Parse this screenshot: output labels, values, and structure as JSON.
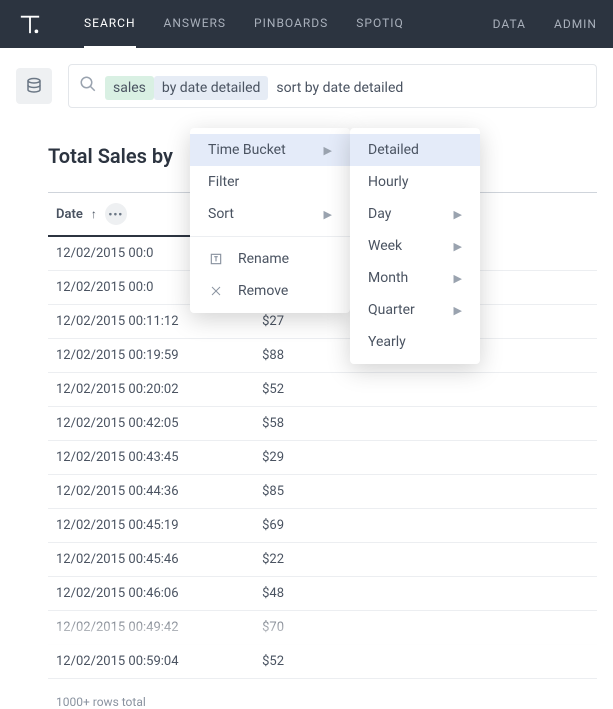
{
  "colors": {
    "navbar_bg": "#2c3440",
    "nav_inactive": "#a9b0bb",
    "nav_active": "#ffffff",
    "token_green_bg": "#d9f0e3",
    "token_blue_bg": "#e6ecf5",
    "menu_highlight_bg": "#e4ebf9",
    "border": "#eceef1",
    "text": "#4a5361"
  },
  "nav": {
    "items": [
      "SEARCH",
      "ANSWERS",
      "PINBOARDS",
      "SPOTIQ"
    ],
    "right": [
      "DATA",
      "ADMIN"
    ],
    "active_index": 0
  },
  "search": {
    "tokens": [
      {
        "text": "sales",
        "style": "green"
      },
      {
        "text": "by date detailed",
        "style": "blue"
      },
      {
        "text": "sort by date detailed",
        "style": "plain"
      }
    ]
  },
  "page": {
    "title": "Total Sales by"
  },
  "table": {
    "column_header": "Date",
    "sort_dir": "asc",
    "rows": [
      {
        "date": "12/02/2015 00:0",
        "value": ""
      },
      {
        "date": "12/02/2015 00:0",
        "value": ""
      },
      {
        "date": "12/02/2015 00:11:12",
        "value": "$27"
      },
      {
        "date": "12/02/2015 00:19:59",
        "value": "$88"
      },
      {
        "date": "12/02/2015 00:20:02",
        "value": "$52"
      },
      {
        "date": "12/02/2015 00:42:05",
        "value": "$58"
      },
      {
        "date": "12/02/2015 00:43:45",
        "value": "$29"
      },
      {
        "date": "12/02/2015 00:44:36",
        "value": "$85"
      },
      {
        "date": "12/02/2015 00:45:19",
        "value": "$69"
      },
      {
        "date": "12/02/2015 00:45:46",
        "value": "$22"
      },
      {
        "date": "12/02/2015 00:46:06",
        "value": "$48"
      },
      {
        "date": "12/02/2015 00:49:42",
        "value": "$70"
      },
      {
        "date": "12/02/2015 00:59:04",
        "value": "$52"
      }
    ],
    "footer": "1000+ rows total"
  },
  "context_menu_1": {
    "items": [
      {
        "label": "Time Bucket",
        "submenu": true,
        "highlight": true,
        "icon": ""
      },
      {
        "label": "Filter",
        "submenu": false,
        "icon": ""
      },
      {
        "label": "Sort",
        "submenu": true,
        "icon": ""
      }
    ],
    "items2": [
      {
        "label": "Rename",
        "icon": "rename"
      },
      {
        "label": "Remove",
        "icon": "close"
      }
    ]
  },
  "context_menu_2": {
    "items": [
      {
        "label": "Detailed",
        "submenu": false,
        "highlight": true
      },
      {
        "label": "Hourly",
        "submenu": false
      },
      {
        "label": "Day",
        "submenu": true
      },
      {
        "label": "Week",
        "submenu": true
      },
      {
        "label": "Month",
        "submenu": true
      },
      {
        "label": "Quarter",
        "submenu": true
      },
      {
        "label": "Yearly",
        "submenu": false
      }
    ]
  }
}
